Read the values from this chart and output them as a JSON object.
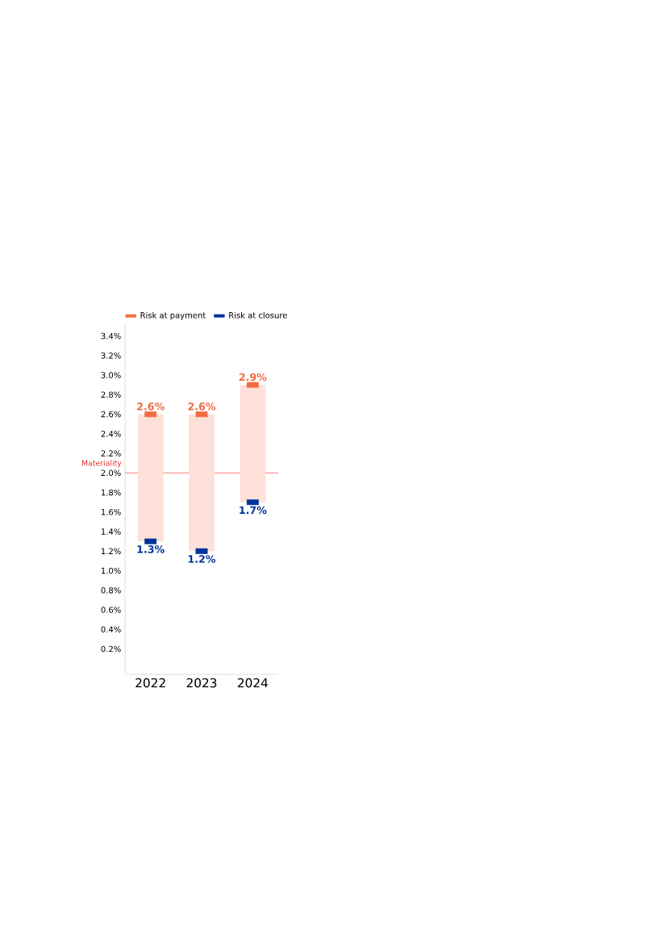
{
  "chart_data": {
    "type": "bar",
    "categories": [
      "2022",
      "2023",
      "2024"
    ],
    "series": [
      {
        "color": "#fde0d8",
        "base": [
          1.3,
          1.2,
          1.7
        ],
        "values": [
          1.3,
          1.4,
          1.2
        ]
      },
      {
        "type": "scatter",
        "name": "Risk at payment",
        "color": "#f26b43",
        "values": [
          2.6,
          2.6,
          2.9
        ],
        "value_labels": [
          "2.6%",
          "2.6%",
          "2.9%"
        ]
      },
      {
        "type": "scatter",
        "name": "Risk at closure",
        "color": "#003399",
        "values": [
          1.3,
          1.2,
          1.7
        ],
        "value_labels": [
          "1.3%",
          "1.2%",
          "1.7%"
        ]
      }
    ],
    "ylim": [
      -0.06,
      3.52
    ],
    "yticks": [
      {
        "value": 0.2,
        "label": "0.2%"
      },
      {
        "value": 0.4,
        "label": "0.4%"
      },
      {
        "value": 0.6,
        "label": "0.6%"
      },
      {
        "value": 0.8,
        "label": "0.8%"
      },
      {
        "value": 1.0,
        "label": "1.0%"
      },
      {
        "value": 1.2,
        "label": "1.2%"
      },
      {
        "value": 1.4,
        "label": "1.4%"
      },
      {
        "value": 1.6,
        "label": "1.6%"
      },
      {
        "value": 1.8,
        "label": "1.8%"
      },
      {
        "value": 2.0,
        "label": "2.0%"
      },
      {
        "value": 2.2,
        "label": "2.2%"
      },
      {
        "value": 2.4,
        "label": "2.4%"
      },
      {
        "value": 2.6,
        "label": "2.6%"
      },
      {
        "value": 2.8,
        "label": "2.8%"
      },
      {
        "value": 3.0,
        "label": "3.0%"
      },
      {
        "value": 3.2,
        "label": "3.2%"
      },
      {
        "value": 3.4,
        "label": "3.4%"
      }
    ],
    "ref_lines": [
      {
        "axis": "y",
        "value": 2.0,
        "label": "Materiality",
        "color": "#f0302f"
      }
    ],
    "legend": "top",
    "marker": "square",
    "grid": false
  }
}
